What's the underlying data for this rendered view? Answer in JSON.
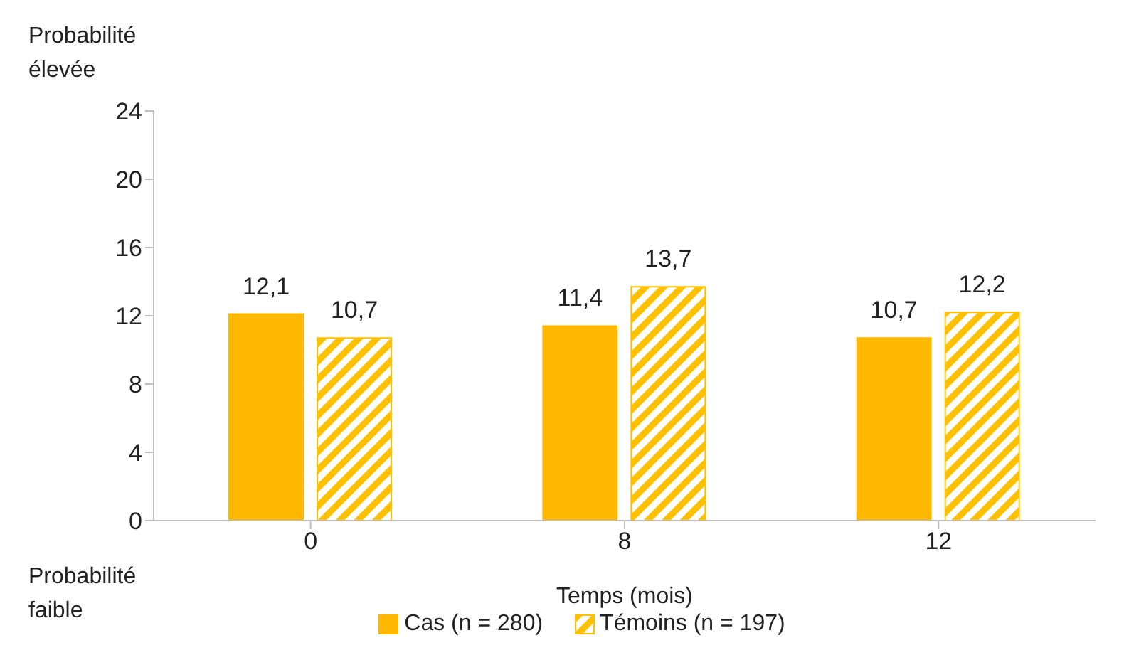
{
  "chart_data": {
    "type": "bar",
    "xlabel": "Temps (mois)",
    "categories": [
      "0",
      "8",
      "12"
    ],
    "series": [
      {
        "name": "Cas (n = 280)",
        "color": "#ffb800",
        "values": [
          12.1,
          11.4,
          10.7
        ],
        "value_labels": [
          "12,1",
          "11,4",
          "10,7"
        ]
      },
      {
        "name": "Témoins (n = 197)",
        "color": "#ffc000",
        "values": [
          10.7,
          13.7,
          12.2
        ],
        "value_labels": [
          "10,7",
          "13,7",
          "12,2"
        ]
      }
    ],
    "ylim": [
      0,
      24
    ],
    "yticks": [
      0,
      4,
      8,
      12,
      16,
      20,
      24
    ],
    "legend": "bottom",
    "annotations": [
      "Probabilité élevée",
      "Probabilité faible"
    ]
  }
}
